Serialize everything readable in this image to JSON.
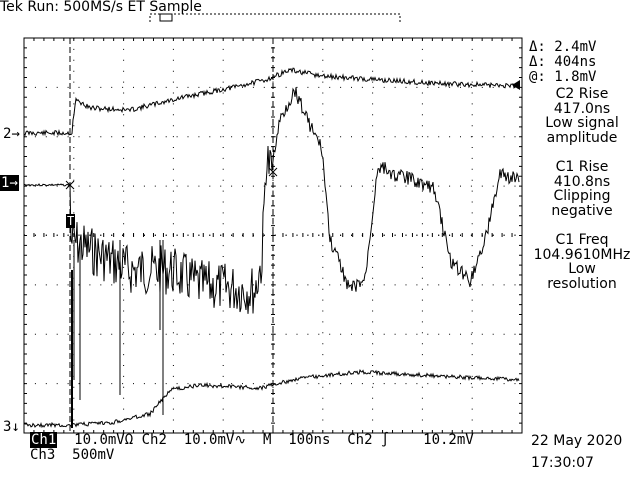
{
  "header": {
    "title": "Tek Run: 500MS/s ET Sample"
  },
  "cursor_readout": {
    "delta_v": "2.4mV",
    "delta_t": "404ns",
    "at_v": "1.8mV",
    "delta_v_prefix": "Δ:",
    "delta_t_prefix": "Δ:",
    "at_prefix": "@:"
  },
  "measurements": [
    {
      "name": "C2 Rise",
      "value": "417.0ns",
      "note_line1": "Low signal",
      "note_line2": "amplitude"
    },
    {
      "name": "C1 Rise",
      "value": "410.8ns",
      "note_line1": "Clipping",
      "note_line2": "negative"
    },
    {
      "name": "C1 Freq",
      "value": "104.9610MHz",
      "note_line1": "Low",
      "note_line2": "resolution"
    }
  ],
  "channel_markers": {
    "ch2": "2",
    "ch1": "1",
    "ch3": "3",
    "trigger": "T"
  },
  "footer": {
    "ch1_label": "Ch1",
    "ch1_scale": "10.0mVΩ",
    "ch2_label": "Ch2",
    "ch2_scale": "10.0mV",
    "ch2_coupling": "∿",
    "timebase_label": "M",
    "timebase": "100ns",
    "trigger_source": "Ch2",
    "trigger_slope": "∫",
    "trigger_level": "10.2mV",
    "ch3_label": "Ch3",
    "ch3_scale": "500mV",
    "date": "22 May 2020",
    "time": "17:30:07"
  },
  "colors": {
    "background": "#ffffff",
    "trace": "#000000",
    "grid": "#000000"
  }
}
